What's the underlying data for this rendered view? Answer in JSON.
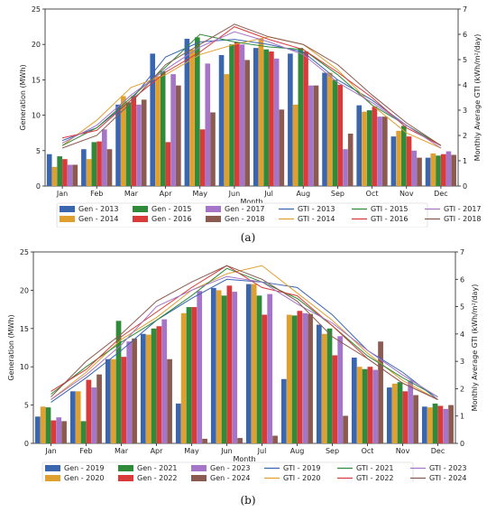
{
  "panels": [
    {
      "label": "(a)"
    },
    {
      "label": "(b)"
    }
  ],
  "chart_data": [
    {
      "type": "bar+line",
      "categories": [
        "Jan",
        "Feb",
        "Mar",
        "Apr",
        "May",
        "Jun",
        "Jul",
        "Aug",
        "Sep",
        "Oct",
        "Nov",
        "Dec"
      ],
      "xlabel": "Month",
      "ylabel": "Generation (MWh)",
      "y2label": "Monthly Average GTI (kWh/m²/day)",
      "ylim": [
        0,
        25
      ],
      "y2lim": [
        0,
        7
      ],
      "yticks": [
        0,
        5,
        10,
        15,
        20,
        25
      ],
      "y2ticks": [
        0,
        1,
        2,
        3,
        4,
        5,
        6,
        7
      ],
      "legend": "bottom",
      "bars": [
        {
          "name": "Gen - 2013",
          "color": "#3a66b0",
          "values": [
            4.5,
            5.2,
            11.5,
            18.7,
            20.8,
            18.5,
            19.5,
            18.7,
            16.0,
            11.4,
            7.0,
            4.0
          ]
        },
        {
          "name": "Gen - 2014",
          "color": "#e0a030",
          "values": [
            2.7,
            3.8,
            12.7,
            15.5,
            19.3,
            15.8,
            20.8,
            11.5,
            16.0,
            10.5,
            7.8,
            4.6
          ]
        },
        {
          "name": "Gen - 2015",
          "color": "#2f8a3a",
          "values": [
            4.2,
            6.2,
            11.8,
            16.2,
            21.0,
            20.0,
            19.3,
            19.5,
            15.0,
            10.7,
            8.5,
            4.3
          ]
        },
        {
          "name": "Gen - 2016",
          "color": "#d93a3a",
          "values": [
            3.8,
            6.3,
            12.7,
            6.2,
            8.0,
            20.3,
            19.0,
            19.0,
            14.3,
            11.2,
            7.0,
            4.5
          ]
        },
        {
          "name": "Gen - 2017",
          "color": "#a475c8",
          "values": [
            3.0,
            8.0,
            11.5,
            15.8,
            17.3,
            20.0,
            18.0,
            14.2,
            5.2,
            9.8,
            5.0,
            4.9
          ]
        },
        {
          "name": "Gen - 2018",
          "color": "#8b5a50",
          "values": [
            3.0,
            5.2,
            12.2,
            14.2,
            10.4,
            17.8,
            10.8,
            14.2,
            7.4,
            9.8,
            4.0,
            4.4
          ]
        }
      ],
      "lines": [
        {
          "name": "GTI - 2013",
          "color": "#3a66b0",
          "values": [
            1.8,
            2.3,
            3.4,
            5.1,
            5.7,
            5.8,
            5.6,
            5.3,
            4.2,
            3.4,
            2.4,
            1.6
          ]
        },
        {
          "name": "GTI - 2014",
          "color": "#e0a030",
          "values": [
            1.6,
            2.6,
            3.9,
            4.4,
            5.2,
            5.6,
            5.9,
            5.6,
            4.6,
            3.2,
            2.1,
            1.5
          ]
        },
        {
          "name": "GTI - 2015",
          "color": "#2f8a3a",
          "values": [
            1.6,
            2.3,
            3.5,
            4.7,
            6.0,
            5.7,
            5.5,
            5.4,
            4.4,
            3.2,
            2.4,
            1.6
          ]
        },
        {
          "name": "GTI - 2016",
          "color": "#d93a3a",
          "values": [
            1.9,
            2.2,
            3.4,
            4.5,
            5.3,
            6.3,
            5.8,
            5.4,
            4.5,
            3.5,
            2.3,
            1.6
          ]
        },
        {
          "name": "GTI - 2017",
          "color": "#a475c8",
          "values": [
            1.7,
            2.4,
            3.6,
            4.6,
            5.5,
            6.1,
            5.7,
            5.2,
            4.1,
            3.3,
            2.4,
            1.5
          ]
        },
        {
          "name": "GTI - 2018",
          "color": "#8b5a50",
          "values": [
            1.5,
            2.0,
            3.3,
            4.8,
            5.6,
            6.4,
            5.9,
            5.6,
            4.8,
            3.6,
            2.5,
            1.6
          ]
        }
      ]
    },
    {
      "type": "bar+line",
      "categories": [
        "Jan",
        "Feb",
        "Mar",
        "Apr",
        "May",
        "Jun",
        "Jul",
        "Aug",
        "Sep",
        "Oct",
        "Nov",
        "Dec"
      ],
      "xlabel": "Month",
      "ylabel": "Generation (MWh)",
      "y2label": "Monthly Average GTI (kWh/m²/day)",
      "ylim": [
        0,
        25
      ],
      "y2lim": [
        0,
        7
      ],
      "yticks": [
        0,
        5,
        10,
        15,
        20,
        25
      ],
      "y2ticks": [
        0,
        1,
        2,
        3,
        4,
        5,
        6,
        7
      ],
      "legend": "bottom",
      "bars": [
        {
          "name": "Gen - 2019",
          "color": "#3a66b0",
          "values": [
            3.5,
            6.8,
            11.0,
            14.3,
            5.2,
            20.3,
            20.8,
            8.4,
            15.5,
            11.2,
            7.3,
            4.8
          ]
        },
        {
          "name": "Gen - 2020",
          "color": "#e0a030",
          "values": [
            4.8,
            6.8,
            11.0,
            14.2,
            17.0,
            20.0,
            20.8,
            16.8,
            14.3,
            10.0,
            7.8,
            4.7
          ]
        },
        {
          "name": "Gen - 2021",
          "color": "#2f8a3a",
          "values": [
            4.7,
            2.9,
            16.0,
            15.0,
            17.8,
            19.3,
            19.3,
            16.7,
            15.0,
            9.7,
            8.0,
            5.2
          ]
        },
        {
          "name": "Gen - 2022",
          "color": "#d93a3a",
          "values": [
            3.0,
            8.3,
            11.3,
            15.3,
            17.8,
            20.6,
            16.8,
            17.3,
            11.5,
            10.0,
            6.8,
            4.9
          ]
        },
        {
          "name": "Gen - 2023",
          "color": "#a475c8",
          "values": [
            3.4,
            7.3,
            13.3,
            16.2,
            19.9,
            19.8,
            19.5,
            17.0,
            14.0,
            9.6,
            8.2,
            4.5
          ]
        },
        {
          "name": "Gen - 2024",
          "color": "#8b5a50",
          "values": [
            2.9,
            9.0,
            13.7,
            11.0,
            0.6,
            0.7,
            1.0,
            16.9,
            3.6,
            13.3,
            6.3,
            5.0
          ]
        }
      ],
      "lines": [
        {
          "name": "GTI - 2019",
          "color": "#3a66b0",
          "values": [
            1.5,
            2.4,
            3.4,
            4.5,
            5.3,
            6.0,
            5.9,
            5.7,
            4.7,
            3.4,
            2.6,
            1.6
          ]
        },
        {
          "name": "GTI - 2020",
          "color": "#e0a030",
          "values": [
            1.6,
            2.6,
            3.8,
            4.6,
            5.6,
            6.2,
            6.5,
            5.5,
            4.5,
            3.3,
            2.3,
            1.6
          ]
        },
        {
          "name": "GTI - 2021",
          "color": "#2f8a3a",
          "values": [
            1.8,
            2.8,
            3.7,
            4.5,
            5.4,
            6.4,
            5.9,
            5.3,
            4.3,
            3.2,
            2.4,
            1.7
          ]
        },
        {
          "name": "GTI - 2022",
          "color": "#d93a3a",
          "values": [
            1.9,
            2.7,
            3.9,
            4.8,
            5.7,
            6.5,
            5.7,
            5.4,
            4.3,
            3.1,
            2.2,
            1.6
          ]
        },
        {
          "name": "GTI - 2023",
          "color": "#a475c8",
          "values": [
            1.6,
            2.5,
            3.6,
            5.0,
            5.6,
            6.1,
            5.9,
            5.1,
            4.4,
            3.4,
            2.5,
            1.7
          ]
        },
        {
          "name": "GTI - 2024",
          "color": "#8b5a50",
          "values": [
            1.7,
            3.0,
            4.0,
            5.2,
            5.9,
            6.5,
            6.0,
            5.2,
            3.9,
            3.1,
            2.2,
            1.6
          ]
        }
      ]
    }
  ]
}
